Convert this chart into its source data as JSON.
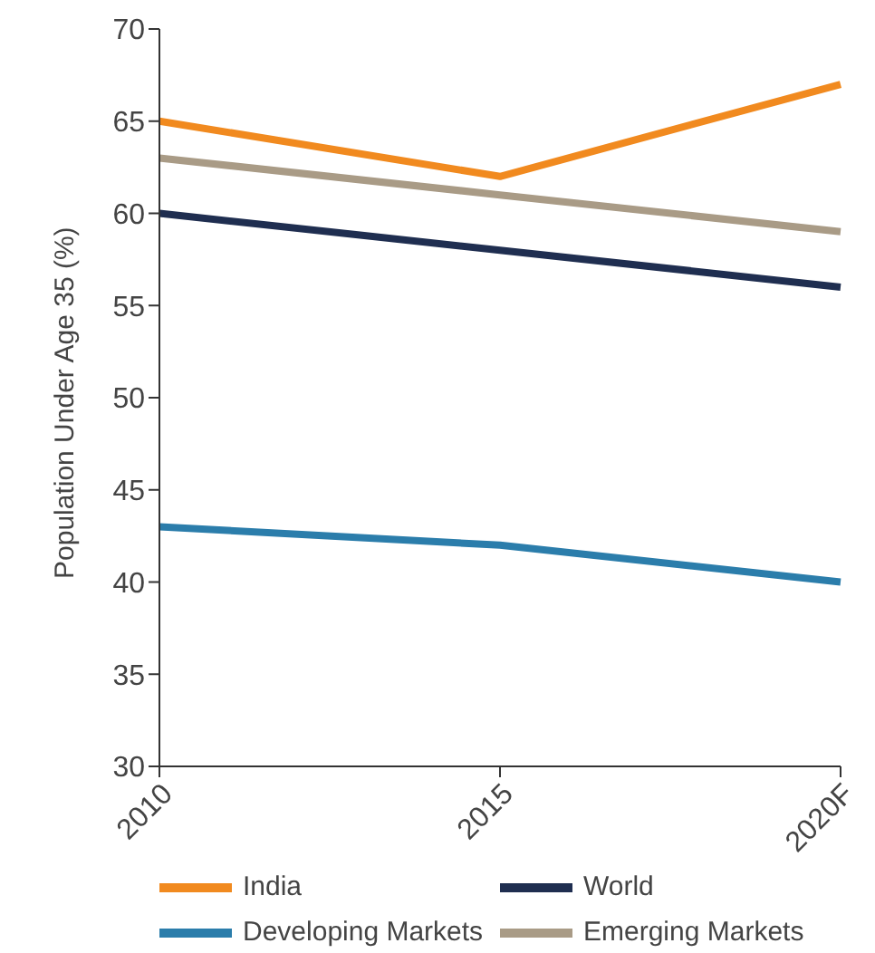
{
  "chart_data": {
    "type": "line",
    "ylabel": "Population Under Age 35 (%)",
    "categories": [
      "2010",
      "2015",
      "2020F"
    ],
    "series": [
      {
        "name": "India",
        "color": "#f18a1f",
        "values": [
          65,
          62,
          67
        ]
      },
      {
        "name": "World",
        "color": "#1f2e50",
        "values": [
          60,
          58,
          56
        ]
      },
      {
        "name": "Developing Markets",
        "color": "#2b7dab",
        "values": [
          43,
          42,
          40
        ]
      },
      {
        "name": "Emerging Markets",
        "color": "#a99b86",
        "values": [
          63,
          61,
          59
        ]
      }
    ],
    "ylim": [
      30,
      70
    ],
    "yticks": [
      30,
      35,
      40,
      45,
      50,
      55,
      60,
      65,
      70
    ],
    "grid": false,
    "legend": "bottom",
    "marker": "none",
    "line_style": "solid"
  }
}
